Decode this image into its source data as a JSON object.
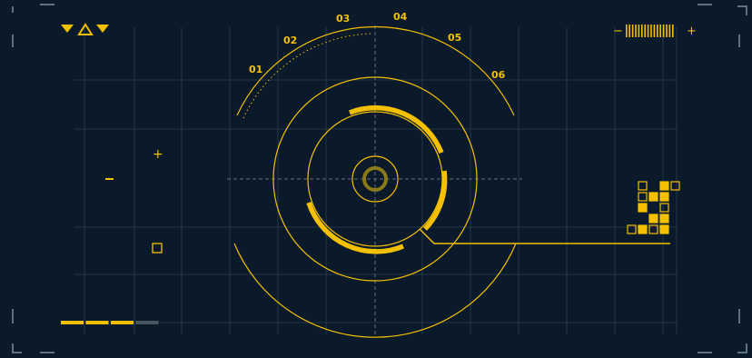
{
  "colors": {
    "background": "#0b1a2a",
    "grid": "#2a3f52",
    "accent": "#f5c000",
    "corner": "#5d7183",
    "inactive": "#4a5560"
  },
  "dial": {
    "labels": [
      "01",
      "02",
      "03",
      "04",
      "05",
      "06"
    ]
  },
  "top_left_icons": [
    "triangle-down-filled-icon",
    "triangle-up-outline-icon",
    "triangle-down-filled-icon"
  ],
  "top_right_gauge": {
    "minus_symbol": "−",
    "plus_symbol": "+"
  },
  "marker_plus": "+",
  "marker_dash": "−",
  "progress_segments": {
    "filled": 3,
    "total": 4
  },
  "block_matrix_icon": "pixel-block-matrix-icon"
}
